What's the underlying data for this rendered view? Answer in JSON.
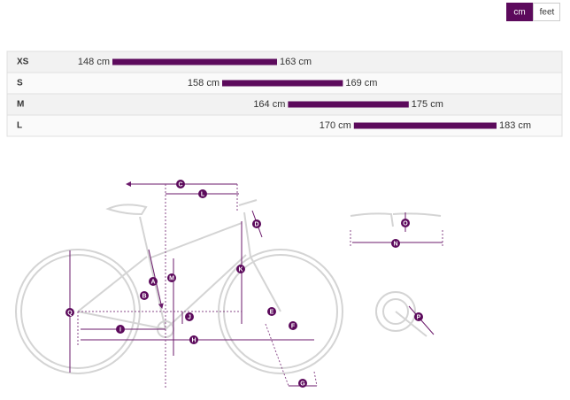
{
  "unit_toggle": [
    "cm",
    "feet"
  ],
  "size_table": {
    "rows": [
      {
        "size": "XS",
        "min": {
          "value": 148,
          "label": "148 cm"
        },
        "max": {
          "value": 163,
          "label": "163 cm"
        }
      },
      {
        "size": "S",
        "min": {
          "value": 158,
          "label": "158 cm"
        },
        "max": {
          "value": 169,
          "label": "169 cm"
        }
      },
      {
        "size": "M",
        "min": {
          "value": 164,
          "label": "164 cm"
        },
        "max": {
          "value": 175,
          "label": "175 cm"
        }
      },
      {
        "size": "L",
        "min": {
          "value": 170,
          "label": "170 cm"
        },
        "max": {
          "value": 183,
          "label": "183 cm"
        }
      }
    ]
  },
  "geometry_labels": [
    "A",
    "B",
    "C",
    "D",
    "E",
    "F",
    "G",
    "H",
    "I",
    "J",
    "K",
    "L",
    "M",
    "N",
    "O",
    "P",
    "Q"
  ]
}
